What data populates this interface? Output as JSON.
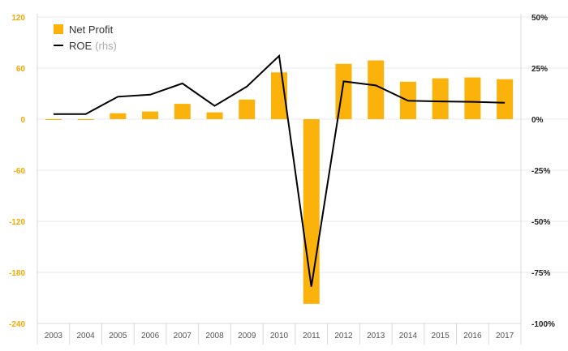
{
  "colors": {
    "bar": "#FBB20A",
    "line": "#000000",
    "left_tick": "#F2A900",
    "right_tick": "#222222",
    "x_tick": "#555555",
    "grid": "#e9e9e9",
    "axis": "#d8d8d8"
  },
  "legend": {
    "bar_label": "Net Profit",
    "line_label": "ROE",
    "line_note": "(rhs)"
  },
  "chart_data": {
    "type": "bar",
    "categories": [
      "2003",
      "2004",
      "2005",
      "2006",
      "2007",
      "2008",
      "2009",
      "2010",
      "2011",
      "2012",
      "2013",
      "2014",
      "2015",
      "2016",
      "2017"
    ],
    "series": [
      {
        "name": "Net Profit",
        "type": "bar",
        "axis": "left",
        "values": [
          -1,
          -1,
          7,
          9,
          18,
          8,
          23,
          55,
          -217,
          65,
          69,
          44,
          48,
          49,
          47
        ]
      },
      {
        "name": "ROE",
        "type": "line",
        "axis": "right",
        "values": [
          2.5,
          2.5,
          11,
          12,
          17.5,
          6.5,
          16,
          31,
          -82,
          18.5,
          16.5,
          9,
          8.7,
          8.5,
          8
        ]
      }
    ],
    "left_axis": {
      "ylim": [
        -240,
        120
      ],
      "ticks": [
        120,
        60,
        0,
        -60,
        -120,
        -180,
        -240
      ],
      "tick_labels": [
        "120",
        "60",
        "0",
        "-60",
        "-120",
        "-180",
        "-240"
      ]
    },
    "right_axis": {
      "ylim": [
        -100,
        50
      ],
      "ticks": [
        50,
        25,
        0,
        -25,
        -50,
        -75,
        -100
      ],
      "tick_labels": [
        "50%",
        "25%",
        "0%",
        "-25%",
        "-50%",
        "-75%",
        "-100%"
      ]
    },
    "grid": true,
    "legend_position": "top-left"
  }
}
